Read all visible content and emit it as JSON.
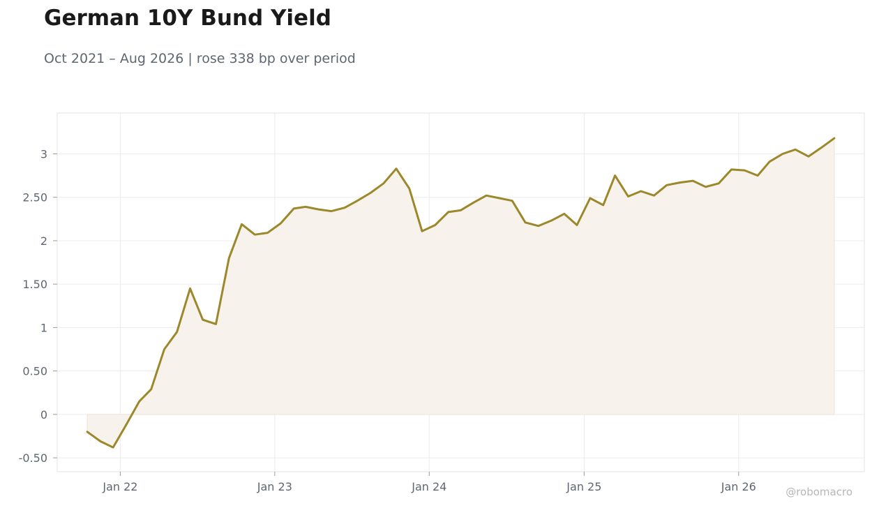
{
  "title": "German 10Y Bund Yield",
  "subtitle": "Oct 2021 – Aug 2026 | rose 338 bp over period",
  "watermark": "@robomacro",
  "colors": {
    "line": "#9c882a",
    "fill": "#f7f3ec",
    "grid": "#ececec",
    "frame": "#e3e3e3"
  },
  "chart_data": {
    "type": "area",
    "x": [
      "2021-10",
      "2021-11",
      "2021-12",
      "2022-01",
      "2022-02",
      "2022-03",
      "2022-04",
      "2022-05",
      "2022-06",
      "2022-07",
      "2022-08",
      "2022-09",
      "2022-10",
      "2022-11",
      "2022-12",
      "2023-01",
      "2023-02",
      "2023-03",
      "2023-04",
      "2023-05",
      "2023-06",
      "2023-07",
      "2023-08",
      "2023-09",
      "2023-10",
      "2023-11",
      "2023-12",
      "2024-01",
      "2024-02",
      "2024-03",
      "2024-04",
      "2024-05",
      "2024-06",
      "2024-07",
      "2024-08",
      "2024-09",
      "2024-10",
      "2024-11",
      "2024-12",
      "2025-01",
      "2025-02",
      "2025-03",
      "2025-04",
      "2025-05",
      "2025-06",
      "2025-07",
      "2025-08",
      "2025-09",
      "2025-10",
      "2025-11",
      "2025-12",
      "2026-01",
      "2026-02",
      "2026-03",
      "2026-04",
      "2026-05",
      "2026-06",
      "2026-07",
      "2026-08"
    ],
    "series": [
      {
        "values": [
          -0.2,
          -0.31,
          -0.38,
          -0.12,
          0.15,
          0.29,
          0.75,
          0.95,
          1.45,
          1.09,
          1.04,
          1.8,
          2.19,
          2.07,
          2.09,
          2.2,
          2.37,
          2.39,
          2.36,
          2.34,
          2.38,
          2.46,
          2.55,
          2.66,
          2.83,
          2.6,
          2.11,
          2.18,
          2.33,
          2.35,
          2.44,
          2.52,
          2.49,
          2.46,
          2.21,
          2.17,
          2.23,
          2.31,
          2.18,
          2.49,
          2.41,
          2.75,
          2.51,
          2.57,
          2.52,
          2.64,
          2.67,
          2.69,
          2.62,
          2.66,
          2.82,
          2.81,
          2.75,
          2.91,
          3.0,
          3.05,
          2.97,
          3.07,
          3.18
        ]
      }
    ],
    "x_ticks": [
      {
        "date": "2022-01-01",
        "label": "Jan 22"
      },
      {
        "date": "2023-01-01",
        "label": "Jan 23"
      },
      {
        "date": "2024-01-01",
        "label": "Jan 24"
      },
      {
        "date": "2025-01-01",
        "label": "Jan 25"
      },
      {
        "date": "2026-01-01",
        "label": "Jan 26"
      }
    ],
    "y_ticks": [
      {
        "value": 3,
        "label": "3"
      },
      {
        "value": 2.5,
        "label": "2.50"
      },
      {
        "value": 2,
        "label": "2"
      },
      {
        "value": 1.5,
        "label": "1.50"
      },
      {
        "value": 1,
        "label": "1"
      },
      {
        "value": 0.5,
        "label": "0.50"
      },
      {
        "value": 0,
        "label": "0"
      },
      {
        "value": -0.5,
        "label": "-0.50"
      }
    ],
    "xlim": [
      "2021-08-05",
      "2026-10-25"
    ],
    "ylim": [
      -0.66,
      3.47
    ],
    "grid": true,
    "legend": "none"
  }
}
